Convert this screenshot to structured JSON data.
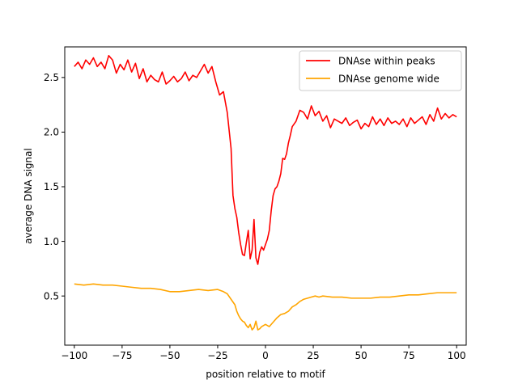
{
  "chart_data": {
    "type": "line",
    "title": "",
    "xlabel": "position relative to motif",
    "ylabel": "average DNA signal",
    "xlim": [
      -105,
      105
    ],
    "ylim": [
      0.05,
      2.78
    ],
    "xticks": [
      -100,
      -75,
      -50,
      -25,
      0,
      25,
      50,
      75,
      100
    ],
    "xtick_labels": [
      "−100",
      "−75",
      "−50",
      "−25",
      "0",
      "25",
      "50",
      "75",
      "100"
    ],
    "yticks": [
      0.5,
      1.0,
      1.5,
      2.0,
      2.5
    ],
    "ytick_labels": [
      "0.5",
      "1.0",
      "1.5",
      "2.0",
      "2.5"
    ],
    "grid": false,
    "legend_position": "top-right",
    "series": [
      {
        "name": "DNAse within peaks",
        "color": "#ff0000",
        "x": [
          -100,
          -98,
          -96,
          -94,
          -92,
          -90,
          -88,
          -86,
          -84,
          -82,
          -80,
          -78,
          -76,
          -74,
          -72,
          -70,
          -68,
          -66,
          -64,
          -62,
          -60,
          -58,
          -56,
          -54,
          -52,
          -50,
          -48,
          -46,
          -44,
          -42,
          -40,
          -38,
          -36,
          -34,
          -32,
          -30,
          -28,
          -26,
          -24,
          -22,
          -20,
          -18,
          -17,
          -16,
          -15,
          -14,
          -13,
          -12,
          -11,
          -10,
          -9,
          -8,
          -7,
          -6,
          -5,
          -4,
          -3,
          -2,
          -1,
          0,
          1,
          2,
          3,
          4,
          5,
          6,
          7,
          8,
          9,
          10,
          11,
          12,
          13,
          14,
          16,
          18,
          20,
          22,
          24,
          26,
          28,
          30,
          32,
          34,
          36,
          38,
          40,
          42,
          44,
          46,
          48,
          50,
          52,
          54,
          56,
          58,
          60,
          62,
          64,
          66,
          68,
          70,
          72,
          74,
          76,
          78,
          80,
          82,
          84,
          86,
          88,
          90,
          92,
          94,
          96,
          98,
          100
        ],
        "y": [
          2.6,
          2.64,
          2.58,
          2.66,
          2.62,
          2.68,
          2.6,
          2.64,
          2.58,
          2.7,
          2.66,
          2.54,
          2.62,
          2.57,
          2.66,
          2.55,
          2.63,
          2.49,
          2.58,
          2.46,
          2.52,
          2.48,
          2.46,
          2.55,
          2.44,
          2.47,
          2.51,
          2.46,
          2.49,
          2.55,
          2.47,
          2.52,
          2.5,
          2.56,
          2.62,
          2.54,
          2.6,
          2.46,
          2.34,
          2.37,
          2.18,
          1.85,
          1.42,
          1.3,
          1.22,
          1.08,
          0.97,
          0.88,
          0.87,
          0.99,
          1.1,
          0.84,
          0.92,
          1.2,
          0.85,
          0.79,
          0.9,
          0.95,
          0.92,
          0.97,
          1.02,
          1.1,
          1.28,
          1.42,
          1.48,
          1.5,
          1.55,
          1.62,
          1.76,
          1.75,
          1.8,
          1.9,
          1.97,
          2.05,
          2.1,
          2.2,
          2.18,
          2.12,
          2.24,
          2.15,
          2.19,
          2.1,
          2.15,
          2.04,
          2.12,
          2.1,
          2.08,
          2.13,
          2.06,
          2.09,
          2.11,
          2.03,
          2.08,
          2.05,
          2.14,
          2.07,
          2.12,
          2.06,
          2.13,
          2.08,
          2.1,
          2.07,
          2.12,
          2.05,
          2.13,
          2.08,
          2.11,
          2.14,
          2.07,
          2.16,
          2.1,
          2.22,
          2.12,
          2.17,
          2.13,
          2.16,
          2.14
        ]
      },
      {
        "name": "DNAse genome wide",
        "color": "#ffa500",
        "x": [
          -100,
          -95,
          -90,
          -85,
          -80,
          -75,
          -70,
          -65,
          -60,
          -55,
          -50,
          -45,
          -40,
          -35,
          -30,
          -25,
          -22,
          -20,
          -18,
          -16,
          -15,
          -14,
          -13,
          -12,
          -11,
          -10,
          -9,
          -8,
          -7,
          -6,
          -5,
          -4,
          -3,
          -2,
          -1,
          0,
          2,
          4,
          6,
          8,
          10,
          12,
          14,
          16,
          18,
          20,
          22,
          24,
          26,
          28,
          30,
          35,
          40,
          45,
          50,
          55,
          60,
          65,
          70,
          75,
          80,
          85,
          90,
          95,
          100
        ],
        "y": [
          0.61,
          0.6,
          0.61,
          0.6,
          0.6,
          0.59,
          0.58,
          0.57,
          0.57,
          0.56,
          0.54,
          0.54,
          0.55,
          0.56,
          0.55,
          0.56,
          0.54,
          0.52,
          0.47,
          0.42,
          0.36,
          0.32,
          0.29,
          0.27,
          0.26,
          0.23,
          0.21,
          0.24,
          0.19,
          0.21,
          0.27,
          0.19,
          0.2,
          0.22,
          0.23,
          0.24,
          0.22,
          0.26,
          0.3,
          0.33,
          0.34,
          0.36,
          0.4,
          0.42,
          0.45,
          0.47,
          0.48,
          0.49,
          0.5,
          0.49,
          0.5,
          0.49,
          0.49,
          0.48,
          0.48,
          0.48,
          0.49,
          0.49,
          0.5,
          0.51,
          0.51,
          0.52,
          0.53,
          0.53,
          0.53
        ]
      }
    ]
  }
}
